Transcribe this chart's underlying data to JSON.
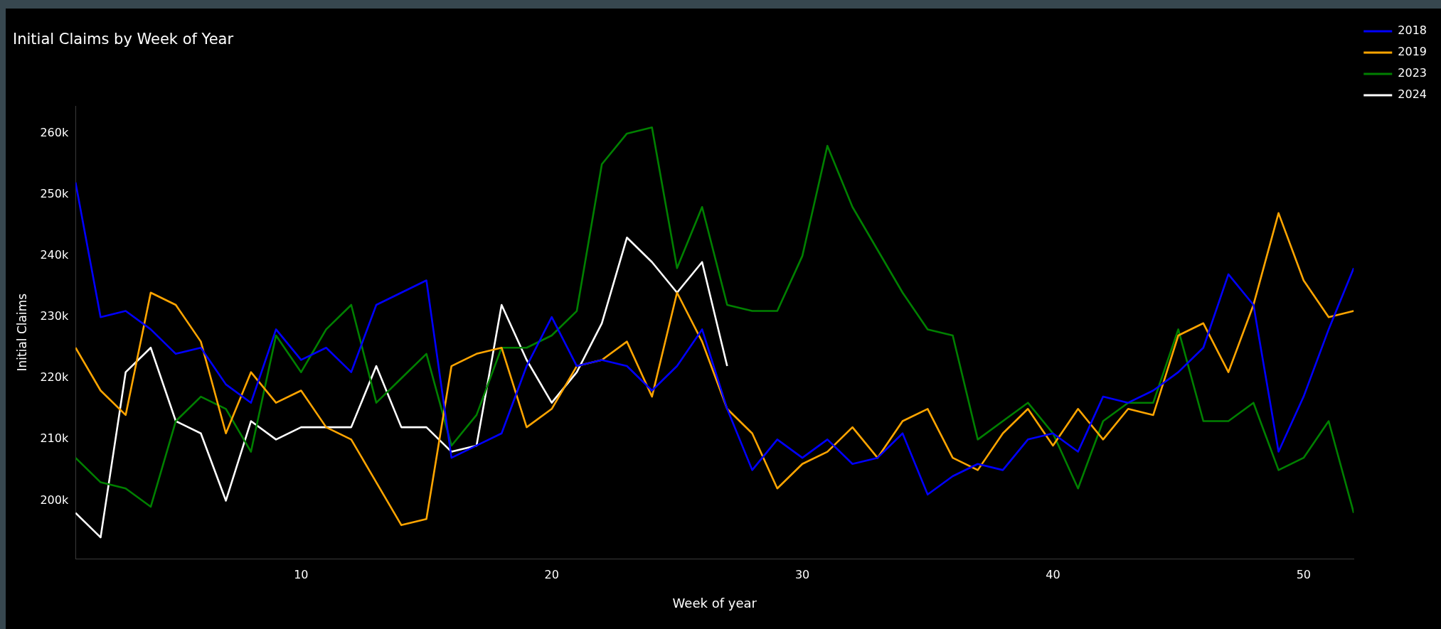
{
  "chart_data": {
    "type": "line",
    "title": "Initial Claims by Week of Year",
    "xlabel": "Week of year",
    "ylabel": "Initial Claims",
    "x": [
      1,
      2,
      3,
      4,
      5,
      6,
      7,
      8,
      9,
      10,
      11,
      12,
      13,
      14,
      15,
      16,
      17,
      18,
      19,
      20,
      21,
      22,
      23,
      24,
      25,
      26,
      27,
      28,
      29,
      30,
      31,
      32,
      33,
      34,
      35,
      36,
      37,
      38,
      39,
      40,
      41,
      42,
      43,
      44,
      45,
      46,
      47,
      48,
      49,
      50,
      51,
      52
    ],
    "series": [
      {
        "name": "2018",
        "color": "#0000ff",
        "values": [
          252000,
          230000,
          231000,
          228000,
          224000,
          225000,
          219000,
          216000,
          228000,
          223000,
          225000,
          221000,
          232000,
          234000,
          236000,
          207000,
          209000,
          211000,
          222000,
          230000,
          222000,
          223000,
          222000,
          218000,
          222000,
          228000,
          215000,
          205000,
          210000,
          207000,
          210000,
          206000,
          207000,
          211000,
          201000,
          204000,
          206000,
          205000,
          210000,
          211000,
          208000,
          217000,
          216000,
          218000,
          221000,
          225000,
          237000,
          232000,
          208000,
          217000,
          228000,
          238000
        ]
      },
      {
        "name": "2019",
        "color": "#ffa500",
        "values": [
          225000,
          218000,
          214000,
          234000,
          232000,
          226000,
          211000,
          221000,
          216000,
          218000,
          212000,
          210000,
          203000,
          196000,
          197000,
          222000,
          224000,
          225000,
          212000,
          215000,
          222000,
          223000,
          226000,
          217000,
          234000,
          226000,
          215000,
          211000,
          202000,
          206000,
          208000,
          212000,
          207000,
          213000,
          215000,
          207000,
          205000,
          211000,
          215000,
          209000,
          215000,
          210000,
          215000,
          214000,
          227000,
          229000,
          221000,
          232000,
          247000,
          236000,
          230000,
          231000
        ]
      },
      {
        "name": "2023",
        "color": "#008000",
        "values": [
          207000,
          203000,
          202000,
          199000,
          213000,
          217000,
          215000,
          208000,
          227000,
          221000,
          228000,
          232000,
          216000,
          220000,
          224000,
          209000,
          214000,
          225000,
          225000,
          227000,
          231000,
          255000,
          260000,
          261000,
          238000,
          248000,
          232000,
          231000,
          231000,
          240000,
          258000,
          248000,
          241000,
          234000,
          228000,
          227000,
          210000,
          213000,
          216000,
          211000,
          202000,
          213000,
          216000,
          216000,
          228000,
          213000,
          213000,
          216000,
          205000,
          207000,
          213000,
          198000
        ]
      },
      {
        "name": "2024",
        "color": "#ffffff",
        "values": [
          198000,
          194000,
          221000,
          225000,
          213000,
          211000,
          200000,
          213000,
          210000,
          212000,
          212000,
          212000,
          222000,
          212000,
          212000,
          208000,
          209000,
          232000,
          223000,
          216000,
          221000,
          229000,
          243000,
          239000,
          234000,
          239000,
          222000,
          null,
          null,
          null,
          null,
          null,
          null,
          null,
          null,
          null,
          null,
          null,
          null,
          null,
          null,
          null,
          null,
          null,
          null,
          null,
          null,
          null,
          null,
          null,
          null,
          null
        ]
      }
    ],
    "xlim": [
      1,
      52
    ],
    "xticks": [
      10,
      20,
      30,
      40,
      50
    ],
    "ylim": [
      190500,
      264500
    ],
    "yticks": [
      {
        "value": 200000,
        "label": "200k"
      },
      {
        "value": 210000,
        "label": "210k"
      },
      {
        "value": 220000,
        "label": "220k"
      },
      {
        "value": 230000,
        "label": "230k"
      },
      {
        "value": 240000,
        "label": "240k"
      },
      {
        "value": 250000,
        "label": "250k"
      },
      {
        "value": 260000,
        "label": "260k"
      }
    ],
    "grid": false,
    "legend": "top right",
    "marker": "none",
    "line_style": "solid"
  }
}
